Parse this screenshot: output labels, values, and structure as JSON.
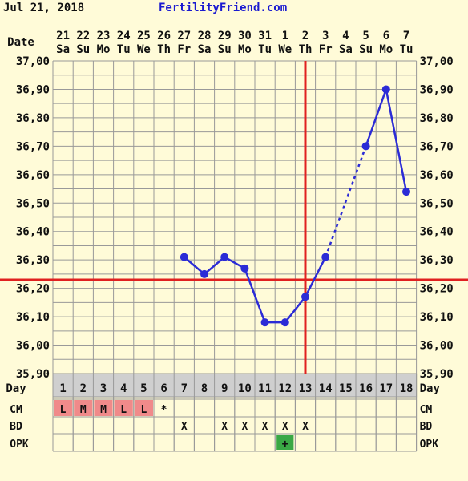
{
  "header": {
    "date": "Jul 21, 2018",
    "site": "FertilityFriend.com"
  },
  "colors": {
    "background": "#fffbd8",
    "grid": "#999999",
    "line": "#2b2bd6",
    "coverline": "#e02020",
    "ovulation": "#e02020",
    "day_row": "#cfcfcf",
    "cell_pink": "#f08a8a",
    "opk_positive": "#3aa845",
    "site_text": "#1a1ad0"
  },
  "row_labels": {
    "date": "Date",
    "day": "Day",
    "cm": "CM",
    "bd": "BD",
    "opk": "OPK"
  },
  "chart_data": {
    "type": "line",
    "ylim": [
      35.9,
      37.0
    ],
    "yticks": [
      "37,00",
      "36,90",
      "36,80",
      "36,70",
      "36,60",
      "36,50",
      "36,40",
      "36,30",
      "36,20",
      "36,10",
      "36,00",
      "35,90"
    ],
    "dates": [
      "21",
      "22",
      "23",
      "24",
      "25",
      "26",
      "27",
      "28",
      "29",
      "30",
      "31",
      "1",
      "2",
      "3",
      "4",
      "5",
      "6",
      "7"
    ],
    "weekdays": [
      "Sa",
      "Su",
      "Mo",
      "Tu",
      "We",
      "Th",
      "Fr",
      "Sa",
      "Su",
      "Mo",
      "Tu",
      "We",
      "Th",
      "Fr",
      "Sa",
      "Su",
      "Mo",
      "Tu"
    ],
    "days": [
      "1",
      "2",
      "3",
      "4",
      "5",
      "6",
      "7",
      "8",
      "9",
      "10",
      "11",
      "12",
      "13",
      "14",
      "15",
      "16",
      "17",
      "18"
    ],
    "temperatures": [
      null,
      null,
      null,
      null,
      null,
      null,
      36.31,
      36.25,
      36.31,
      36.27,
      36.08,
      36.08,
      36.17,
      36.31,
      null,
      36.7,
      36.9,
      36.54
    ],
    "dashed_segment_days": [
      14,
      16
    ],
    "coverline": 36.23,
    "ovulation_day": 13,
    "cm": [
      "L",
      "M",
      "M",
      "L",
      "L",
      "*",
      "",
      "",
      "",
      "",
      "",
      "",
      "",
      "",
      "",
      "",
      "",
      ""
    ],
    "bd": [
      "",
      "",
      "",
      "",
      "",
      "",
      "X",
      "",
      "X",
      "X",
      "X",
      "X",
      "X",
      "",
      "",
      "",
      "",
      ""
    ],
    "opk": [
      "",
      "",
      "",
      "",
      "",
      "",
      "",
      "",
      "",
      "",
      "",
      "+",
      "",
      "",
      "",
      "",
      "",
      ""
    ]
  }
}
